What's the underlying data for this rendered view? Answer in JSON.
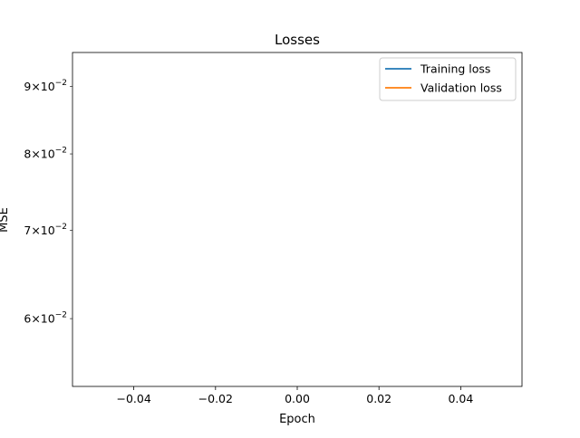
{
  "chart_data": {
    "type": "line",
    "title": "Losses",
    "xlabel": "Epoch",
    "ylabel": "MSE",
    "yscale": "log",
    "xlim": [
      -0.055,
      0.055
    ],
    "ylim": [
      0.0533,
      0.0955
    ],
    "x_ticks": [
      -0.04,
      -0.02,
      0.0,
      0.02,
      0.04
    ],
    "x_tick_labels": [
      "−0.04",
      "−0.02",
      "0.00",
      "0.02",
      "0.04"
    ],
    "y_ticks": [
      0.06,
      0.07,
      0.08,
      0.09
    ],
    "y_tick_labels": [
      {
        "mantissa": "6",
        "base": "10",
        "exp": "−2"
      },
      {
        "mantissa": "7",
        "base": "10",
        "exp": "−2"
      },
      {
        "mantissa": "8",
        "base": "10",
        "exp": "−2"
      },
      {
        "mantissa": "9",
        "base": "10",
        "exp": "−2"
      }
    ],
    "series": [
      {
        "name": "Training loss",
        "color": "#1f77b4",
        "x": [],
        "y": []
      },
      {
        "name": "Validation loss",
        "color": "#ff7f0e",
        "x": [],
        "y": []
      }
    ],
    "legend": "top-right",
    "grid": false
  }
}
